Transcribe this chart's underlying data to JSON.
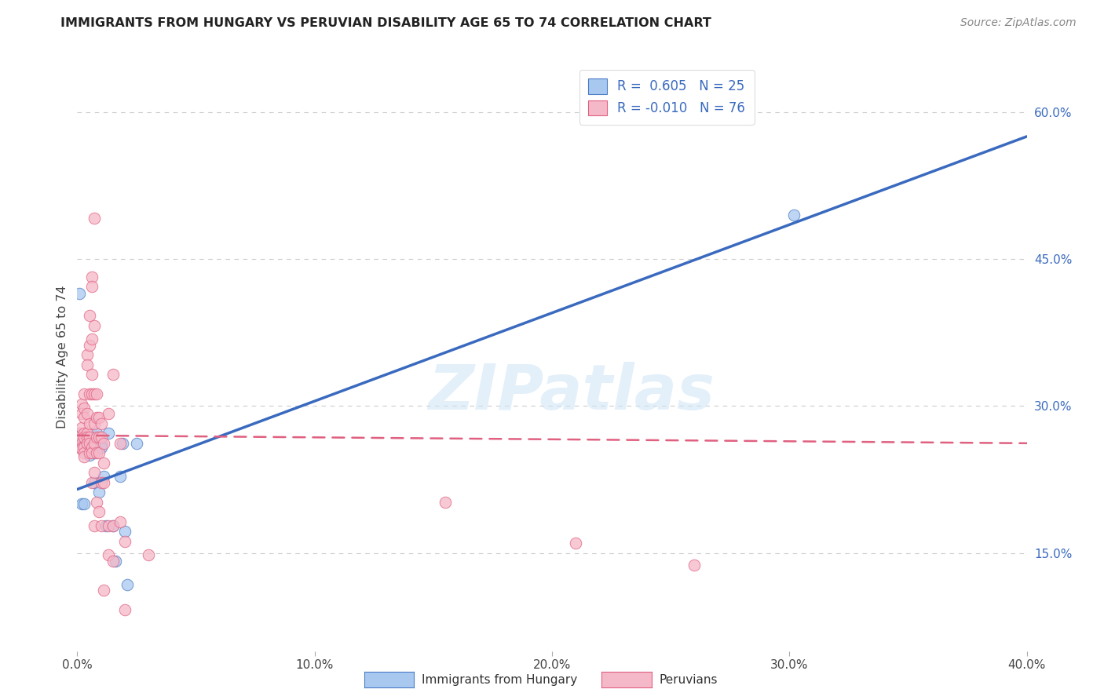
{
  "title": "IMMIGRANTS FROM HUNGARY VS PERUVIAN DISABILITY AGE 65 TO 74 CORRELATION CHART",
  "source": "Source: ZipAtlas.com",
  "ylabel": "Disability Age 65 to 74",
  "x_min": 0.0,
  "x_max": 0.4,
  "y_min": 0.05,
  "y_max": 0.65,
  "x_ticks": [
    0.0,
    0.1,
    0.2,
    0.3,
    0.4
  ],
  "x_tick_labels": [
    "0.0%",
    "10.0%",
    "20.0%",
    "30.0%",
    "40.0%"
  ],
  "y_ticks_right": [
    0.15,
    0.3,
    0.45,
    0.6
  ],
  "y_tick_labels_right": [
    "15.0%",
    "30.0%",
    "45.0%",
    "60.0%"
  ],
  "legend_r1_text": "R =  0.605   N = 25",
  "legend_r2_text": "R = -0.010   N = 76",
  "blue_fill": "#a8c8f0",
  "pink_fill": "#f5b8c8",
  "blue_edge": "#4a7cc4",
  "pink_edge": "#e06080",
  "blue_line_color": "#3a6abf",
  "pink_line_color": "#e06080",
  "watermark": "ZIPatlas",
  "blue_line_y0": 0.215,
  "blue_line_y1": 0.575,
  "pink_line_y0": 0.27,
  "pink_line_y1": 0.262,
  "blue_scatter": [
    [
      0.001,
      0.27
    ],
    [
      0.002,
      0.2
    ],
    [
      0.003,
      0.2
    ],
    [
      0.004,
      0.26
    ],
    [
      0.005,
      0.25
    ],
    [
      0.005,
      0.258
    ],
    [
      0.006,
      0.268
    ],
    [
      0.007,
      0.222
    ],
    [
      0.007,
      0.252
    ],
    [
      0.008,
      0.272
    ],
    [
      0.009,
      0.212
    ],
    [
      0.01,
      0.262
    ],
    [
      0.01,
      0.258
    ],
    [
      0.011,
      0.228
    ],
    [
      0.012,
      0.178
    ],
    [
      0.013,
      0.272
    ],
    [
      0.015,
      0.178
    ],
    [
      0.016,
      0.142
    ],
    [
      0.018,
      0.228
    ],
    [
      0.019,
      0.262
    ],
    [
      0.02,
      0.172
    ],
    [
      0.021,
      0.118
    ],
    [
      0.025,
      0.262
    ],
    [
      0.001,
      0.415
    ],
    [
      0.302,
      0.495
    ]
  ],
  "pink_scatter": [
    [
      0.001,
      0.272
    ],
    [
      0.001,
      0.268
    ],
    [
      0.001,
      0.258
    ],
    [
      0.002,
      0.302
    ],
    [
      0.002,
      0.292
    ],
    [
      0.002,
      0.278
    ],
    [
      0.002,
      0.262
    ],
    [
      0.002,
      0.258
    ],
    [
      0.002,
      0.256
    ],
    [
      0.003,
      0.312
    ],
    [
      0.003,
      0.298
    ],
    [
      0.003,
      0.288
    ],
    [
      0.003,
      0.272
    ],
    [
      0.003,
      0.268
    ],
    [
      0.003,
      0.258
    ],
    [
      0.003,
      0.252
    ],
    [
      0.003,
      0.248
    ],
    [
      0.004,
      0.352
    ],
    [
      0.004,
      0.342
    ],
    [
      0.004,
      0.292
    ],
    [
      0.004,
      0.272
    ],
    [
      0.004,
      0.268
    ],
    [
      0.004,
      0.262
    ],
    [
      0.005,
      0.392
    ],
    [
      0.005,
      0.362
    ],
    [
      0.005,
      0.312
    ],
    [
      0.005,
      0.282
    ],
    [
      0.005,
      0.268
    ],
    [
      0.005,
      0.262
    ],
    [
      0.005,
      0.252
    ],
    [
      0.006,
      0.432
    ],
    [
      0.006,
      0.422
    ],
    [
      0.006,
      0.368
    ],
    [
      0.006,
      0.332
    ],
    [
      0.006,
      0.312
    ],
    [
      0.006,
      0.258
    ],
    [
      0.006,
      0.252
    ],
    [
      0.006,
      0.222
    ],
    [
      0.007,
      0.492
    ],
    [
      0.007,
      0.382
    ],
    [
      0.007,
      0.312
    ],
    [
      0.007,
      0.282
    ],
    [
      0.007,
      0.262
    ],
    [
      0.007,
      0.232
    ],
    [
      0.007,
      0.178
    ],
    [
      0.008,
      0.312
    ],
    [
      0.008,
      0.288
    ],
    [
      0.008,
      0.268
    ],
    [
      0.008,
      0.252
    ],
    [
      0.008,
      0.202
    ],
    [
      0.009,
      0.288
    ],
    [
      0.009,
      0.268
    ],
    [
      0.009,
      0.252
    ],
    [
      0.009,
      0.192
    ],
    [
      0.01,
      0.282
    ],
    [
      0.01,
      0.268
    ],
    [
      0.01,
      0.222
    ],
    [
      0.01,
      0.178
    ],
    [
      0.011,
      0.262
    ],
    [
      0.011,
      0.242
    ],
    [
      0.011,
      0.222
    ],
    [
      0.011,
      0.112
    ],
    [
      0.013,
      0.292
    ],
    [
      0.013,
      0.178
    ],
    [
      0.013,
      0.148
    ],
    [
      0.015,
      0.332
    ],
    [
      0.015,
      0.178
    ],
    [
      0.015,
      0.142
    ],
    [
      0.018,
      0.262
    ],
    [
      0.018,
      0.182
    ],
    [
      0.02,
      0.162
    ],
    [
      0.02,
      0.092
    ],
    [
      0.03,
      0.148
    ],
    [
      0.155,
      0.202
    ],
    [
      0.21,
      0.16
    ],
    [
      0.26,
      0.138
    ]
  ]
}
